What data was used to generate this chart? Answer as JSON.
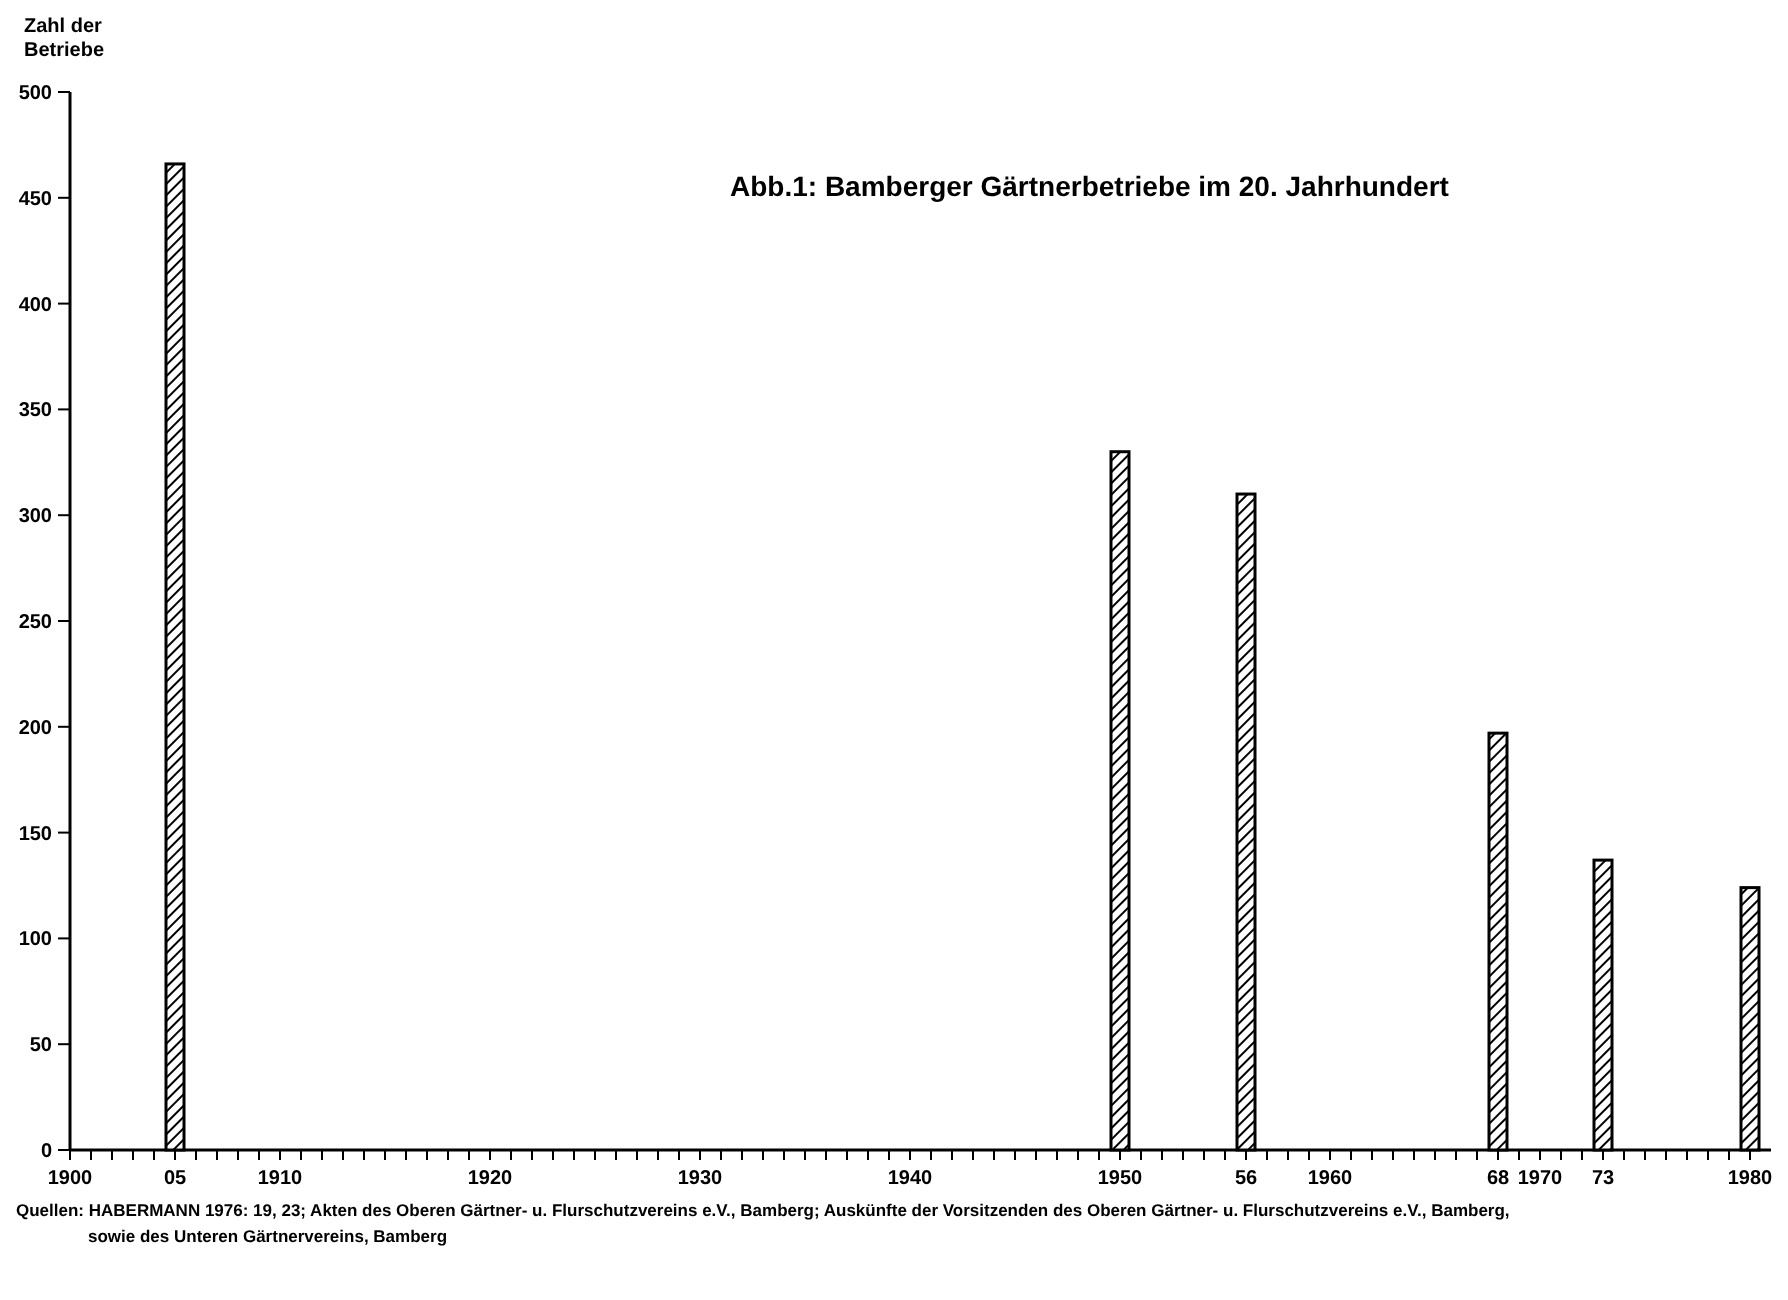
{
  "chart_data": {
    "type": "bar",
    "title": "Abb.1:      Bamberger Gärtnerbetriebe im 20. Jahrhundert",
    "ylabel": "Zahl der Betriebe",
    "x": [
      1905,
      1950,
      1956,
      1968,
      1973,
      1980
    ],
    "values": [
      466,
      330,
      310,
      197,
      137,
      124
    ],
    "color": "#000000",
    "xlim": [
      1900,
      1981
    ],
    "ylim": [
      0,
      500
    ],
    "yticks": [
      0,
      50,
      100,
      150,
      200,
      250,
      300,
      350,
      400,
      450,
      500
    ],
    "xticks": [
      1900,
      {
        "value": 1901,
        "label": null
      },
      {
        "value": 1902,
        "label": null
      },
      {
        "value": 1903,
        "label": null
      },
      {
        "value": 1904,
        "label": null
      },
      {
        "value": 1905,
        "label": "05"
      },
      {
        "value": 1906,
        "label": null
      },
      {
        "value": 1907,
        "label": null
      },
      {
        "value": 1908,
        "label": null
      },
      {
        "value": 1909,
        "label": null
      },
      1910,
      {
        "value": 1911,
        "label": null
      },
      {
        "value": 1912,
        "label": null
      },
      {
        "value": 1913,
        "label": null
      },
      {
        "value": 1914,
        "label": null
      },
      {
        "value": 1915,
        "label": null
      },
      {
        "value": 1916,
        "label": null
      },
      {
        "value": 1917,
        "label": null
      },
      {
        "value": 1918,
        "label": null
      },
      {
        "value": 1919,
        "label": null
      },
      1920,
      {
        "value": 1921,
        "label": null
      },
      {
        "value": 1922,
        "label": null
      },
      {
        "value": 1923,
        "label": null
      },
      {
        "value": 1924,
        "label": null
      },
      {
        "value": 1925,
        "label": null
      },
      {
        "value": 1926,
        "label": null
      },
      {
        "value": 1927,
        "label": null
      },
      {
        "value": 1928,
        "label": null
      },
      {
        "value": 1929,
        "label": null
      },
      1930,
      {
        "value": 1931,
        "label": null
      },
      {
        "value": 1932,
        "label": null
      },
      {
        "value": 1933,
        "label": null
      },
      {
        "value": 1934,
        "label": null
      },
      {
        "value": 1935,
        "label": null
      },
      {
        "value": 1936,
        "label": null
      },
      {
        "value": 1937,
        "label": null
      },
      {
        "value": 1938,
        "label": null
      },
      {
        "value": 1939,
        "label": null
      },
      1940,
      {
        "value": 1941,
        "label": null
      },
      {
        "value": 1942,
        "label": null
      },
      {
        "value": 1943,
        "label": null
      },
      {
        "value": 1944,
        "label": null
      },
      {
        "value": 1945,
        "label": null
      },
      {
        "value": 1946,
        "label": null
      },
      {
        "value": 1947,
        "label": null
      },
      {
        "value": 1948,
        "label": null
      },
      {
        "value": 1949,
        "label": null
      },
      1950,
      {
        "value": 1951,
        "label": null
      },
      {
        "value": 1952,
        "label": null
      },
      {
        "value": 1953,
        "label": null
      },
      {
        "value": 1954,
        "label": null
      },
      {
        "value": 1955,
        "label": null
      },
      {
        "value": 1956,
        "label": "56"
      },
      {
        "value": 1957,
        "label": null
      },
      {
        "value": 1958,
        "label": null
      },
      {
        "value": 1959,
        "label": null
      },
      1960,
      {
        "value": 1961,
        "label": null
      },
      {
        "value": 1962,
        "label": null
      },
      {
        "value": 1963,
        "label": null
      },
      {
        "value": 1964,
        "label": null
      },
      {
        "value": 1965,
        "label": null
      },
      {
        "value": 1966,
        "label": null
      },
      {
        "value": 1967,
        "label": null
      },
      {
        "value": 1968,
        "label": "68"
      },
      {
        "value": 1969,
        "label": null
      },
      1970,
      {
        "value": 1971,
        "label": null
      },
      {
        "value": 1972,
        "label": null
      },
      {
        "value": 1973,
        "label": "73"
      },
      {
        "value": 1974,
        "label": null
      },
      {
        "value": 1975,
        "label": null
      },
      {
        "value": 1976,
        "label": null
      },
      {
        "value": 1977,
        "label": null
      },
      {
        "value": 1978,
        "label": null
      },
      {
        "value": 1979,
        "label": null
      },
      1980
    ],
    "annotations": [
      "Quellen: HABERMANN 1976: 19, 23; Akten des Oberen Gärtner- u. Flurschutzvereins e.V., Bamberg; Auskünfte der Vorsitzenden des Oberen Gärtner- u. Flurschutzvereins e.V., Bamberg, sowie des Unteren Gärtnervereins, Bamberg"
    ]
  }
}
